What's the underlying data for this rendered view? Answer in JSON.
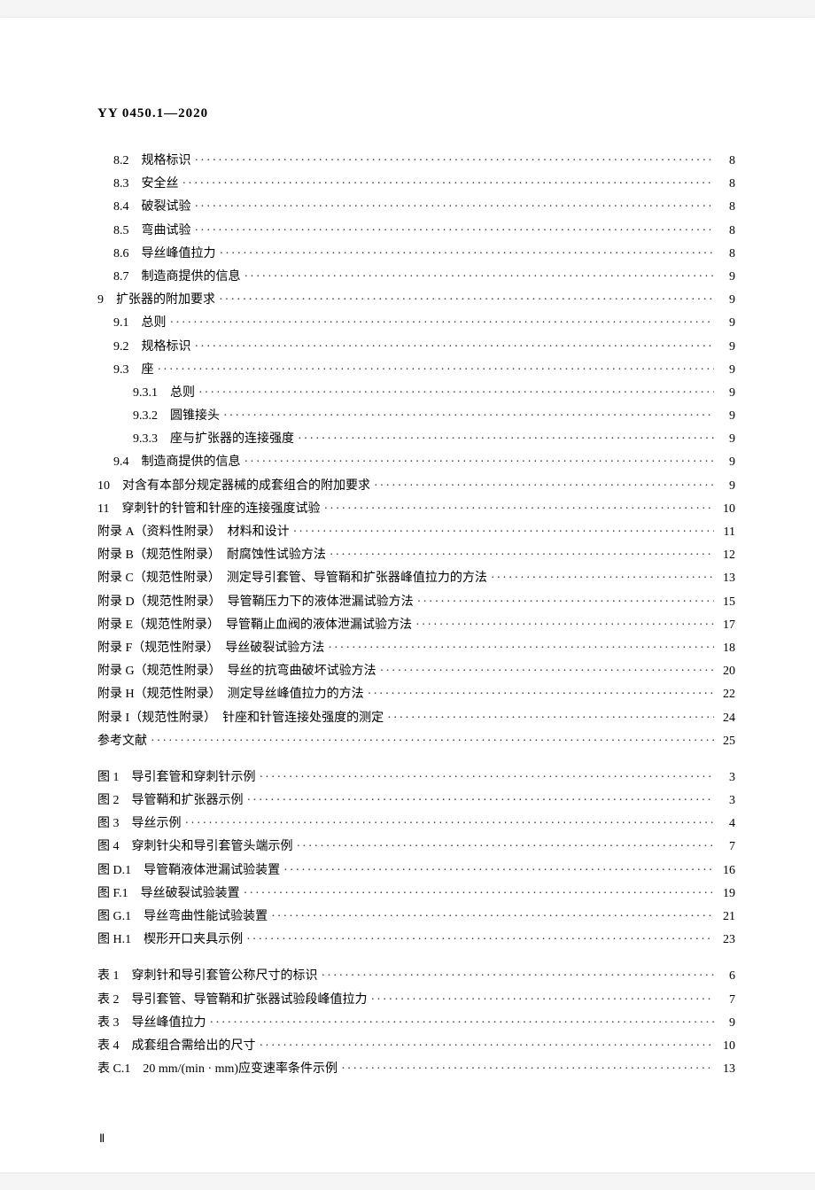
{
  "standard_code": "YY 0450.1—2020",
  "entries": [
    {
      "label": "8.2　规格标识",
      "page": "8",
      "indent": 1
    },
    {
      "label": "8.3　安全丝",
      "page": "8",
      "indent": 1
    },
    {
      "label": "8.4　破裂试验",
      "page": "8",
      "indent": 1
    },
    {
      "label": "8.5　弯曲试验",
      "page": "8",
      "indent": 1
    },
    {
      "label": "8.6　导丝峰值拉力",
      "page": "8",
      "indent": 1
    },
    {
      "label": "8.7　制造商提供的信息",
      "page": "9",
      "indent": 1
    },
    {
      "label": "9　扩张器的附加要求",
      "page": "9",
      "indent": 0
    },
    {
      "label": "9.1　总则",
      "page": "9",
      "indent": 1
    },
    {
      "label": "9.2　规格标识",
      "page": "9",
      "indent": 1
    },
    {
      "label": "9.3　座",
      "page": "9",
      "indent": 1
    },
    {
      "label": "9.3.1　总则",
      "page": "9",
      "indent": 2
    },
    {
      "label": "9.3.2　圆锥接头",
      "page": "9",
      "indent": 2
    },
    {
      "label": "9.3.3　座与扩张器的连接强度",
      "page": "9",
      "indent": 2
    },
    {
      "label": "9.4　制造商提供的信息",
      "page": "9",
      "indent": 1
    },
    {
      "label": "10　对含有本部分规定器械的成套组合的附加要求",
      "page": "9",
      "indent": 0
    },
    {
      "label": "11　穿刺针的针管和针座的连接强度试验",
      "page": "10",
      "indent": 0
    },
    {
      "label": "附录 A（资料性附录）　材料和设计",
      "page": "11",
      "indent": 0
    },
    {
      "label": "附录 B（规范性附录）　耐腐蚀性试验方法",
      "page": "12",
      "indent": 0
    },
    {
      "label": "附录 C（规范性附录）　测定导引套管、导管鞘和扩张器峰值拉力的方法",
      "page": "13",
      "indent": 0
    },
    {
      "label": "附录 D（规范性附录）　导管鞘压力下的液体泄漏试验方法",
      "page": "15",
      "indent": 0
    },
    {
      "label": "附录 E（规范性附录）　导管鞘止血阀的液体泄漏试验方法",
      "page": "17",
      "indent": 0
    },
    {
      "label": "附录 F（规范性附录）　导丝破裂试验方法",
      "page": "18",
      "indent": 0
    },
    {
      "label": "附录 G（规范性附录）　导丝的抗弯曲破坏试验方法",
      "page": "20",
      "indent": 0
    },
    {
      "label": "附录 H（规范性附录）　测定导丝峰值拉力的方法",
      "page": "22",
      "indent": 0
    },
    {
      "label": "附录 I（规范性附录）　针座和针管连接处强度的测定",
      "page": "24",
      "indent": 0
    },
    {
      "label": "参考文献",
      "page": "25",
      "indent": 0
    }
  ],
  "figures": [
    {
      "label": "图 1　导引套管和穿刺针示例",
      "page": "3"
    },
    {
      "label": "图 2　导管鞘和扩张器示例",
      "page": "3"
    },
    {
      "label": "图 3　导丝示例",
      "page": "4"
    },
    {
      "label": "图 4　穿刺针尖和导引套管头端示例",
      "page": "7"
    },
    {
      "label": "图 D.1　导管鞘液体泄漏试验装置",
      "page": "16"
    },
    {
      "label": "图 F.1　导丝破裂试验装置",
      "page": "19"
    },
    {
      "label": "图 G.1　导丝弯曲性能试验装置",
      "page": "21"
    },
    {
      "label": "图 H.1　楔形开口夹具示例",
      "page": "23"
    }
  ],
  "tables": [
    {
      "label": "表 1　穿刺针和导引套管公称尺寸的标识",
      "page": "6"
    },
    {
      "label": "表 2　导引套管、导管鞘和扩张器试验段峰值拉力",
      "page": "7"
    },
    {
      "label": "表 3　导丝峰值拉力",
      "page": "9"
    },
    {
      "label": "表 4　成套组合需给出的尺寸",
      "page": "10"
    },
    {
      "label": "表 C.1　20 mm/(min · mm)应变速率条件示例",
      "page": "13"
    }
  ],
  "footer_marker": "Ⅱ"
}
